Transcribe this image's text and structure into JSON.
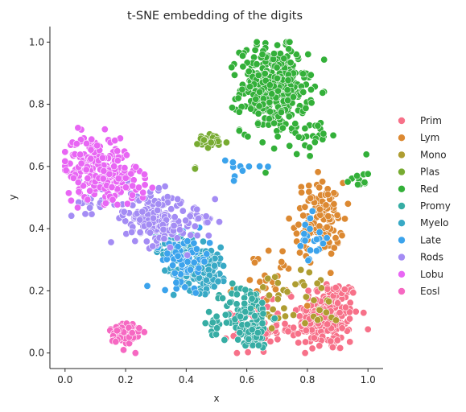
{
  "chart_data": {
    "type": "scatter",
    "title": "t-SNE embedding of the digits",
    "xlabel": "x",
    "ylabel": "y",
    "xlim": [
      -0.05,
      1.05
    ],
    "ylim": [
      -0.05,
      1.05
    ],
    "xticks": [
      "0.0",
      "0.2",
      "0.4",
      "0.6",
      "0.8",
      "1.0"
    ],
    "yticks": [
      "0.0",
      "0.2",
      "0.4",
      "0.6",
      "0.8",
      "1.0"
    ],
    "grid": false,
    "legend_position": "right",
    "series": [
      {
        "name": "Prim",
        "color": "#f77189",
        "clusters": [
          [
            0.87,
            0.12,
            0.05,
            0.06,
            200
          ],
          [
            0.63,
            0.08,
            0.04,
            0.04,
            60
          ],
          [
            0.79,
            0.08,
            0.03,
            0.03,
            25
          ]
        ]
      },
      {
        "name": "Lym",
        "color": "#dc8932",
        "clusters": [
          [
            0.84,
            0.43,
            0.04,
            0.06,
            120
          ],
          [
            0.66,
            0.22,
            0.05,
            0.06,
            30
          ]
        ]
      },
      {
        "name": "Mono",
        "color": "#ae9d31",
        "clusters": [
          [
            0.72,
            0.18,
            0.04,
            0.04,
            25
          ],
          [
            0.86,
            0.15,
            0.04,
            0.04,
            15
          ]
        ]
      },
      {
        "name": "Plas",
        "color": "#77ab31",
        "clusters": [
          [
            0.48,
            0.68,
            0.03,
            0.012,
            30
          ],
          [
            0.43,
            0.59,
            0.005,
            0.005,
            3
          ]
        ]
      },
      {
        "name": "Red",
        "color": "#33b039",
        "clusters": [
          [
            0.69,
            0.85,
            0.055,
            0.07,
            380
          ],
          [
            0.97,
            0.57,
            0.015,
            0.02,
            12
          ],
          [
            0.83,
            0.7,
            0.03,
            0.03,
            20
          ]
        ]
      },
      {
        "name": "Promy",
        "color": "#36ada4",
        "clusters": [
          [
            0.6,
            0.12,
            0.04,
            0.05,
            110
          ],
          [
            0.62,
            0.05,
            0.03,
            0.02,
            30
          ],
          [
            0.49,
            0.09,
            0.02,
            0.02,
            10
          ]
        ]
      },
      {
        "name": "Myelo",
        "color": "#38a9c5",
        "clusters": [
          [
            0.45,
            0.27,
            0.045,
            0.035,
            150
          ],
          [
            0.36,
            0.35,
            0.03,
            0.02,
            40
          ]
        ]
      },
      {
        "name": "Late",
        "color": "#3ba3ec",
        "clusters": [
          [
            0.4,
            0.3,
            0.04,
            0.04,
            60
          ],
          [
            0.81,
            0.36,
            0.03,
            0.04,
            20
          ],
          [
            0.58,
            0.6,
            0.04,
            0.03,
            10
          ]
        ]
      },
      {
        "name": "Rods",
        "color": "#a48cf4",
        "clusters": [
          [
            0.3,
            0.43,
            0.05,
            0.04,
            170
          ],
          [
            0.12,
            0.5,
            0.05,
            0.04,
            40
          ],
          [
            0.45,
            0.42,
            0.03,
            0.03,
            25
          ]
        ]
      },
      {
        "name": "Lobu",
        "color": "#e866f4",
        "clusters": [
          [
            0.1,
            0.6,
            0.05,
            0.05,
            200
          ],
          [
            0.2,
            0.55,
            0.04,
            0.03,
            40
          ]
        ]
      },
      {
        "name": "Eosl",
        "color": "#f668c2",
        "clusters": [
          [
            0.2,
            0.06,
            0.025,
            0.025,
            70
          ]
        ]
      }
    ]
  }
}
